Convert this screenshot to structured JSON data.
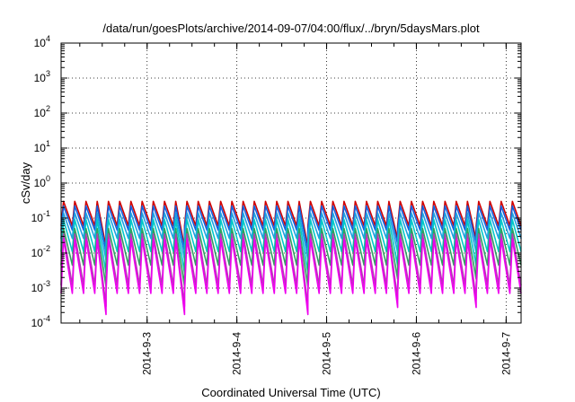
{
  "chart_data": {
    "type": "line",
    "title": "/data/run/goesPlots/archive/2014-09-07/04:00/flux/../bryn/5daysMars.plot",
    "xlabel": "Coordinated Universal Time (UTC)",
    "ylabel": "cSv/day",
    "yscale": "log",
    "ylim": [
      0.0001,
      10000
    ],
    "y_ticks": [
      {
        "base": "10",
        "exp": "-4"
      },
      {
        "base": "10",
        "exp": "-3"
      },
      {
        "base": "10",
        "exp": "-2"
      },
      {
        "base": "10",
        "exp": "-1"
      },
      {
        "base": "10",
        "exp": "0"
      },
      {
        "base": "10",
        "exp": "1"
      },
      {
        "base": "10",
        "exp": "2"
      },
      {
        "base": "10",
        "exp": "3"
      },
      {
        "base": "10",
        "exp": "4"
      }
    ],
    "xlim": [
      "2014-09-02 01:00",
      "2014-09-07 04:00"
    ],
    "x_ticks": [
      "2014-9-3",
      "2014-9-4",
      "2014-9-5",
      "2014-9-6",
      "2014-9-7"
    ],
    "grid": true,
    "pattern": {
      "sawtooth_period_hours": 3,
      "shallow_dips": [
        {
          "time": "2014-09-02 10:00",
          "depth": 4
        },
        {
          "time": "2014-09-03 07:00",
          "depth": 4
        },
        {
          "time": "2014-09-04 16:00",
          "depth": 4
        },
        {
          "time": "2014-09-05 16:00",
          "depth": 2.5
        },
        {
          "time": "2014-09-06 13:00",
          "depth": 2.5
        }
      ]
    },
    "series": [
      {
        "color": "#d00000",
        "peak": 0.3,
        "trough": 0.06,
        "rise": 0.22
      },
      {
        "color": "#1060e0",
        "peak": 0.22,
        "trough": 0.045,
        "rise": 0.22
      },
      {
        "color": "#20a0e0",
        "peak": 0.14,
        "trough": 0.026,
        "rise": 0.22
      },
      {
        "color": "#00c8c8",
        "peak": 0.09,
        "trough": 0.011,
        "rise": 0.22
      },
      {
        "color": "#30a060",
        "peak": 0.05,
        "trough": 0.0045,
        "rise": 0.22
      },
      {
        "color": "#b040b0",
        "peak": 0.035,
        "trough": 0.0012,
        "rise": 0.22
      },
      {
        "color": "#ee00ee",
        "peak": 0.025,
        "trough": 0.0007,
        "rise": 0.22
      }
    ]
  }
}
